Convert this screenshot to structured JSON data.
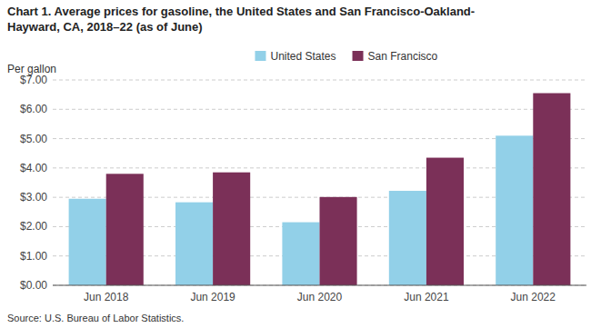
{
  "chart_data": {
    "type": "bar",
    "title": "Chart 1. Average prices for gasoline, the United States and San Francisco-Oakland-\nHayward, CA, 2018–22 (as of June)",
    "y_label": "Per gallon",
    "source": "Source: U.S. Bureau of Labor Statistics.",
    "categories": [
      "Jun 2018",
      "Jun 2019",
      "Jun 2020",
      "Jun 2021",
      "Jun 2022"
    ],
    "series": [
      {
        "name": "United States",
        "color": "#92D0E8",
        "values": [
          2.95,
          2.83,
          2.15,
          3.22,
          5.1
        ]
      },
      {
        "name": "San Francisco",
        "color": "#7B3058",
        "values": [
          3.8,
          3.85,
          3.01,
          4.35,
          6.55
        ]
      }
    ],
    "ylim": [
      0,
      7.0
    ],
    "yticks": [
      {
        "value": 0.0,
        "label": "$0.00"
      },
      {
        "value": 1.0,
        "label": "$1.00"
      },
      {
        "value": 2.0,
        "label": "$2.00"
      },
      {
        "value": 3.0,
        "label": "$3.00"
      },
      {
        "value": 4.0,
        "label": "$4.00"
      },
      {
        "value": 5.0,
        "label": "$5.00"
      },
      {
        "value": 6.0,
        "label": "$6.00"
      },
      {
        "value": 7.0,
        "label": "$7.00"
      }
    ],
    "grid": true,
    "legend": "top"
  }
}
